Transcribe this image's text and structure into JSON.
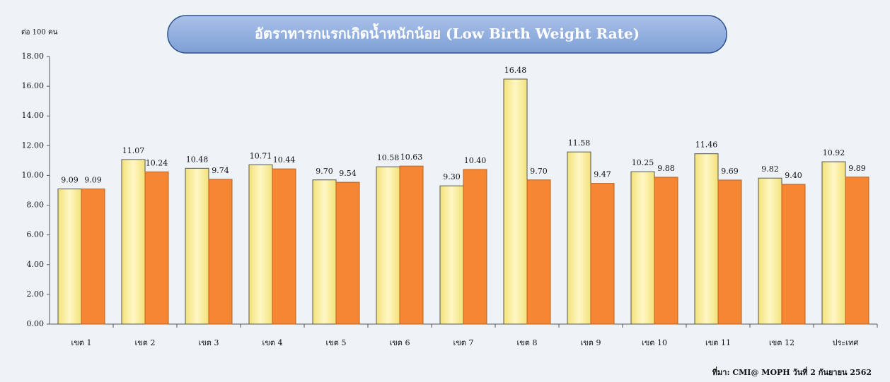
{
  "chart_data": {
    "type": "bar",
    "title": "อัตราทารกแรกเกิดน้ำหนักน้อย  (Low Birth Weight Rate)",
    "y_label": "ต่อ 100 คน",
    "source": "ที่มา: CMI@ MOPH  วันที่ 2 กันยายน 2562",
    "categories": [
      "เขต 1",
      "เขต 2",
      "เขต 3",
      "เขต 4",
      "เขต 5",
      "เขต 6",
      "เขต 7",
      "เขต 8",
      "เขต 9",
      "เขต 10",
      "เขต 11",
      "เขต 12",
      "ประเทศ"
    ],
    "series": [
      {
        "color": "#fff2a8",
        "values": [
          9.09,
          11.07,
          10.48,
          10.71,
          9.7,
          10.58,
          9.3,
          16.48,
          11.58,
          10.25,
          11.46,
          9.82,
          10.92
        ],
        "value_labels": [
          "9.09",
          "11.07",
          "10.48",
          "10.71",
          "9.70",
          "10.58",
          "9.30",
          "16.48",
          "11.58",
          "10.25",
          "11.46",
          "9.82",
          "10.92"
        ]
      },
      {
        "color": "#f58634",
        "values": [
          9.09,
          10.24,
          9.74,
          10.44,
          9.54,
          10.63,
          10.4,
          9.7,
          9.47,
          9.88,
          9.69,
          9.4,
          9.89
        ],
        "value_labels": [
          "9.09",
          "10.24",
          "9.74",
          "10.44",
          "9.54",
          "10.63",
          "10.40",
          "9.70",
          "9.47",
          "9.88",
          "9.69",
          "9.40",
          "9.89"
        ]
      }
    ],
    "ylim": [
      0,
      18
    ],
    "yticks": [
      {
        "value": 0,
        "label": "0.00"
      },
      {
        "value": 2,
        "label": "2.00"
      },
      {
        "value": 4,
        "label": "4.00"
      },
      {
        "value": 6,
        "label": "6.00"
      },
      {
        "value": 8,
        "label": "8.00"
      },
      {
        "value": 10,
        "label": "10.00"
      },
      {
        "value": 12,
        "label": "12.00"
      },
      {
        "value": 14,
        "label": "14.00"
      },
      {
        "value": 16,
        "label": "16.00"
      },
      {
        "value": 18,
        "label": "18.00"
      }
    ],
    "grid": false
  }
}
